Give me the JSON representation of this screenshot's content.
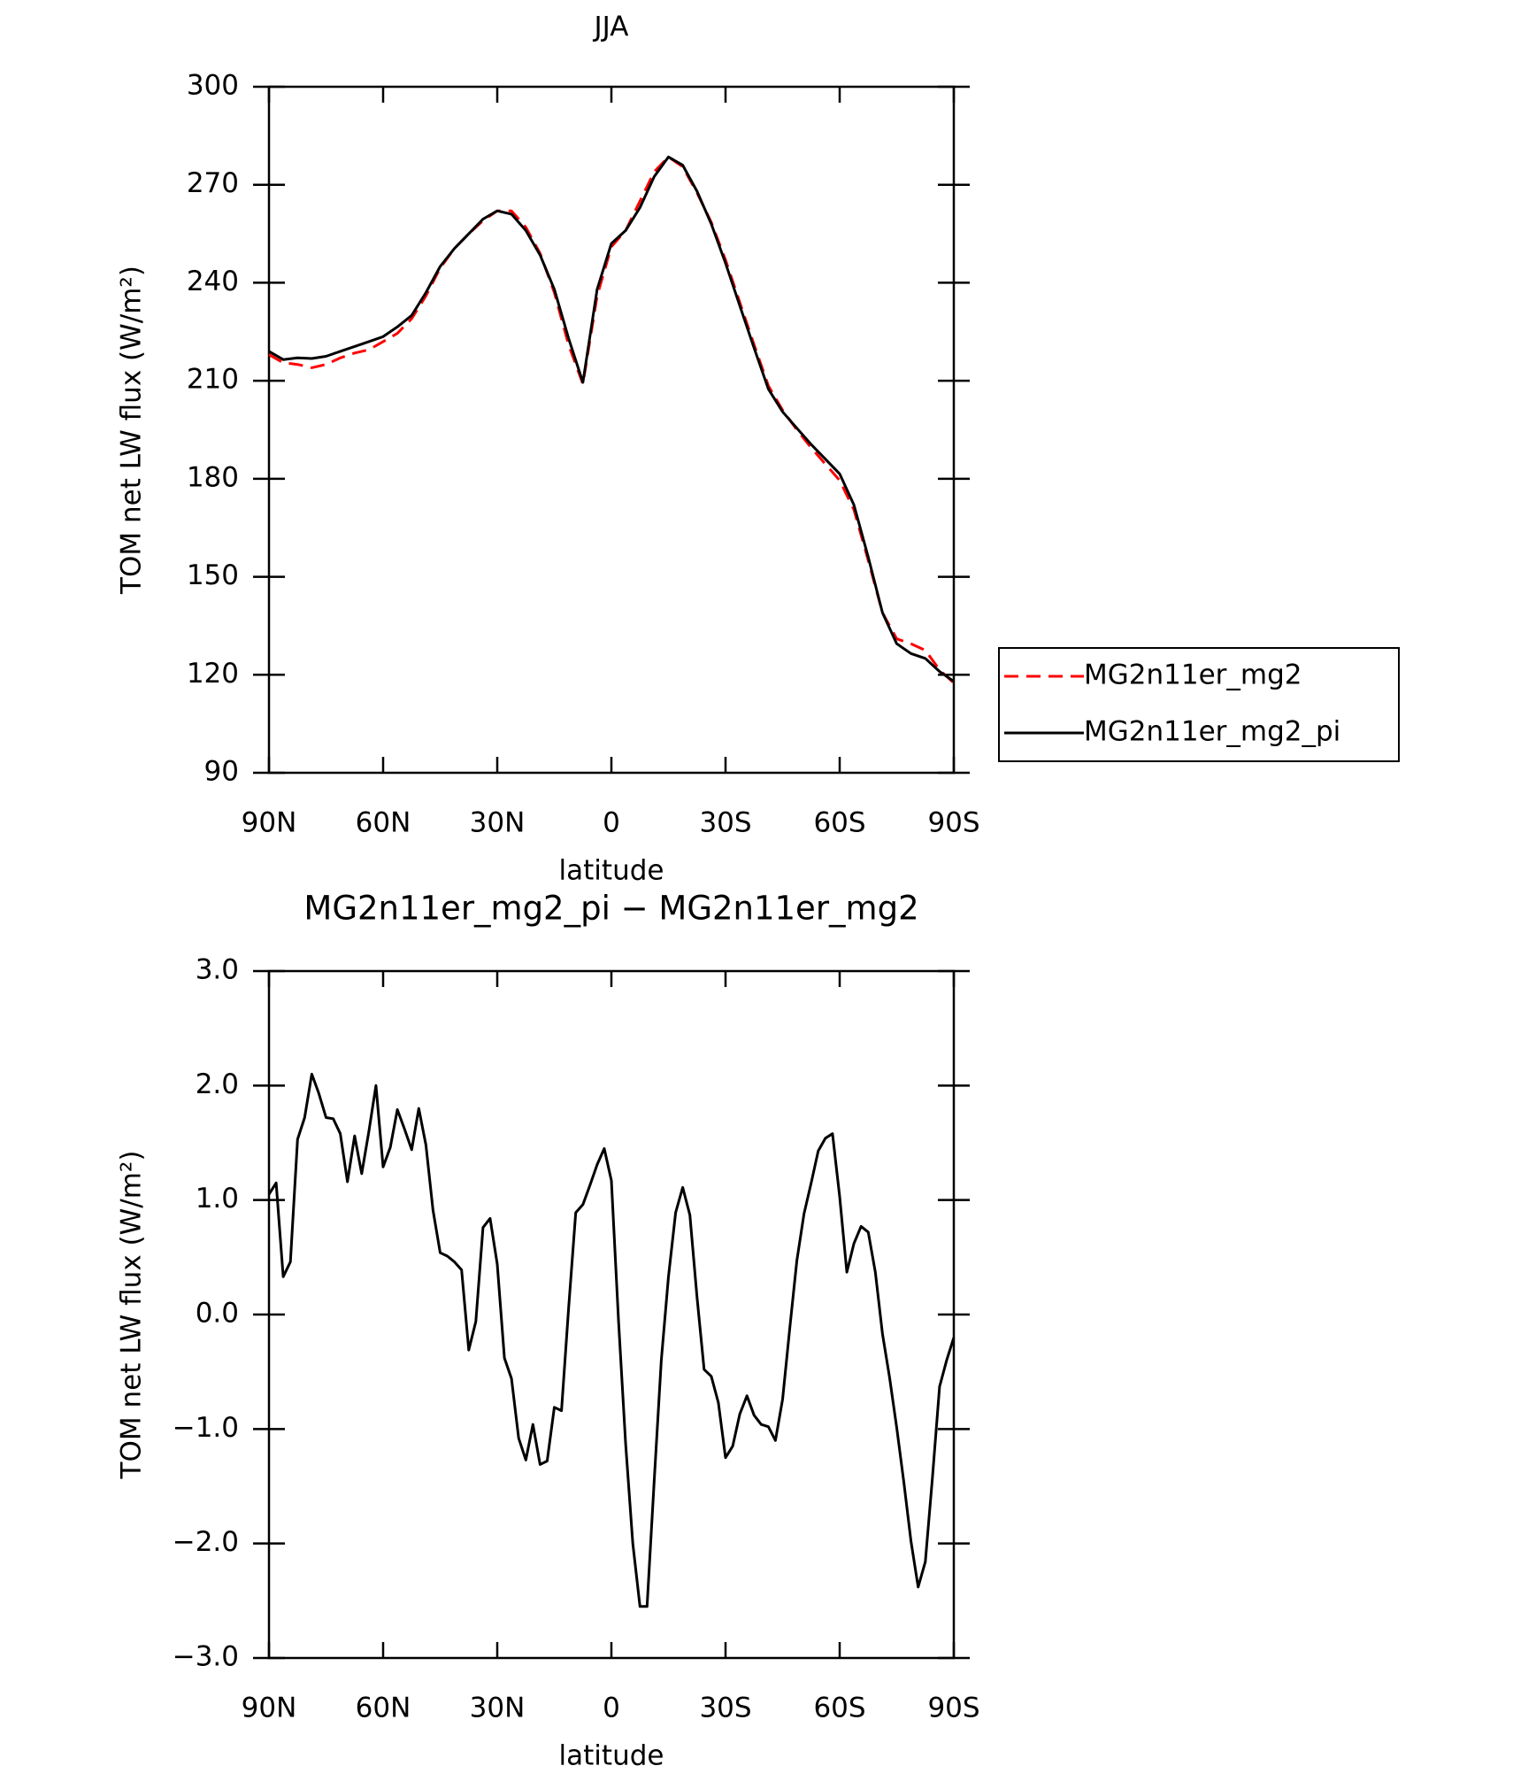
{
  "chart_data": [
    {
      "type": "line",
      "title": "JJA",
      "x_label": "latitude",
      "y_label": "TOM net LW flux (W/m²)",
      "xlim": [
        90,
        -90
      ],
      "ylim": [
        90,
        300
      ],
      "xticks": [
        {
          "value": 90,
          "label": "90N"
        },
        {
          "value": 60,
          "label": "60N"
        },
        {
          "value": 30,
          "label": "30N"
        },
        0,
        {
          "value": -30,
          "label": "30S"
        },
        {
          "value": -60,
          "label": "60S"
        },
        {
          "value": -90,
          "label": "90S"
        }
      ],
      "yticks": [
        90,
        120,
        150,
        180,
        210,
        240,
        270,
        300
      ],
      "legend": "outside-right",
      "x": [
        90,
        86.25,
        82.5,
        78.75,
        75,
        71.25,
        67.5,
        63.75,
        60,
        56.25,
        52.5,
        48.75,
        45,
        41.25,
        37.5,
        33.75,
        30,
        26.25,
        22.5,
        18.75,
        15,
        11.25,
        7.5,
        3.75,
        0,
        -3.75,
        -7.5,
        -11.25,
        -15,
        -18.75,
        -22.5,
        -26.25,
        -30,
        -33.75,
        -37.5,
        -41.25,
        -45,
        -48.75,
        -52.5,
        -56.25,
        -60,
        -63.75,
        -67.5,
        -71.25,
        -75,
        -78.75,
        -82.5,
        -86.25,
        -90
      ],
      "series": [
        {
          "name": "MG2n11er_mg2",
          "color": "#ff0000",
          "dash": true,
          "values": [
            218,
            215.5,
            215,
            214,
            215,
            217,
            218.5,
            219.5,
            222,
            224.5,
            229,
            236,
            244.5,
            250.5,
            255,
            259,
            262,
            262,
            257,
            249,
            237,
            221,
            209,
            236,
            251,
            256,
            265,
            274,
            278.5,
            275.5,
            267.5,
            258.5,
            247,
            234,
            221,
            208.5,
            201,
            195,
            189.5,
            184.5,
            179.5,
            170.5,
            155,
            139,
            131,
            129.5,
            127.5,
            121.5,
            117.5
          ]
        },
        {
          "name": "MG2n11er_mg2_pi",
          "color": "#000000",
          "dash": false,
          "values": [
            219,
            216.5,
            217,
            216.8,
            217.5,
            219,
            220.5,
            222,
            223.5,
            226.5,
            230,
            237,
            245,
            250.5,
            255,
            259.5,
            262,
            261,
            256,
            248.5,
            238,
            223,
            209.5,
            238,
            252,
            256,
            263,
            272.5,
            278.5,
            276,
            268,
            258,
            246,
            233,
            220,
            207.5,
            200.5,
            195.5,
            190.5,
            186,
            181.5,
            172,
            156,
            139,
            129.5,
            126.5,
            125,
            121,
            118
          ]
        }
      ]
    },
    {
      "type": "line",
      "title": "MG2n11er_mg2_pi − MG2n11er_mg2",
      "x_label": "latitude",
      "y_label": "TOM net LW flux (W/m²)",
      "xlim": [
        90,
        -90
      ],
      "ylim": [
        -3,
        3
      ],
      "xticks": [
        {
          "value": 90,
          "label": "90N"
        },
        {
          "value": 60,
          "label": "60N"
        },
        {
          "value": 30,
          "label": "30N"
        },
        0,
        {
          "value": -30,
          "label": "30S"
        },
        {
          "value": -60,
          "label": "60S"
        },
        {
          "value": -90,
          "label": "90S"
        }
      ],
      "yticks": [
        {
          "value": -3,
          "label": "−3.0"
        },
        {
          "value": -2,
          "label": "−2.0"
        },
        {
          "value": -1,
          "label": "−1.0"
        },
        {
          "value": 0,
          "label": "0.0"
        },
        {
          "value": 1,
          "label": "1.0"
        },
        {
          "value": 2,
          "label": "2.0"
        },
        {
          "value": 3,
          "label": "3.0"
        }
      ],
      "x": [
        90,
        88.125,
        86.25,
        84.375,
        82.5,
        80.625,
        78.75,
        76.875,
        75,
        73.125,
        71.25,
        69.375,
        67.5,
        65.625,
        63.75,
        61.875,
        60,
        58.125,
        56.25,
        54.375,
        52.5,
        50.625,
        48.75,
        46.875,
        45,
        43.125,
        41.25,
        39.375,
        37.5,
        35.625,
        33.75,
        31.875,
        30,
        28.125,
        26.25,
        24.375,
        22.5,
        20.625,
        18.75,
        16.875,
        15,
        13.125,
        11.25,
        9.375,
        7.5,
        5.625,
        3.75,
        1.875,
        0,
        -1.875,
        -3.75,
        -5.625,
        -7.5,
        -9.375,
        -11.25,
        -13.125,
        -15,
        -16.875,
        -18.75,
        -20.625,
        -22.5,
        -24.375,
        -26.25,
        -28.125,
        -30,
        -31.875,
        -33.75,
        -35.625,
        -37.5,
        -39.375,
        -41.25,
        -43.125,
        -45,
        -46.875,
        -48.75,
        -50.625,
        -52.5,
        -54.375,
        -56.25,
        -58.125,
        -60,
        -61.875,
        -63.75,
        -65.625,
        -67.5,
        -69.375,
        -71.25,
        -73.125,
        -75,
        -76.875,
        -78.75,
        -80.625,
        -82.5,
        -84.375,
        -86.25,
        -88.125,
        -90
      ],
      "series": [
        {
          "color": "#000000",
          "dash": false,
          "values": [
            1.05,
            1.15,
            0.33,
            0.46,
            1.53,
            1.72,
            2.1,
            1.93,
            1.72,
            1.71,
            1.58,
            1.16,
            1.56,
            1.23,
            1.6,
            2.0,
            1.29,
            1.46,
            1.79,
            1.62,
            1.44,
            1.8,
            1.48,
            0.91,
            0.54,
            0.51,
            0.46,
            0.39,
            -0.31,
            -0.06,
            0.76,
            0.84,
            0.44,
            -0.38,
            -0.56,
            -1.08,
            -1.27,
            -0.96,
            -1.31,
            -1.28,
            -0.81,
            -0.84,
            0.05,
            0.89,
            0.96,
            1.13,
            1.31,
            1.45,
            1.17,
            -0.06,
            -1.13,
            -2.0,
            -2.55,
            -2.55,
            -1.45,
            -0.4,
            0.33,
            0.89,
            1.11,
            0.87,
            0.15,
            -0.48,
            -0.54,
            -0.77,
            -1.25,
            -1.15,
            -0.87,
            -0.71,
            -0.88,
            -0.96,
            -0.98,
            -1.1,
            -0.74,
            -0.12,
            0.47,
            0.88,
            1.15,
            1.43,
            1.54,
            1.58,
            1.03,
            0.37,
            0.62,
            0.77,
            0.72,
            0.37,
            -0.17,
            -0.55,
            -0.99,
            -1.47,
            -1.98,
            -2.38,
            -2.16,
            -1.43,
            -0.63,
            -0.4,
            -0.2
          ]
        }
      ]
    }
  ]
}
